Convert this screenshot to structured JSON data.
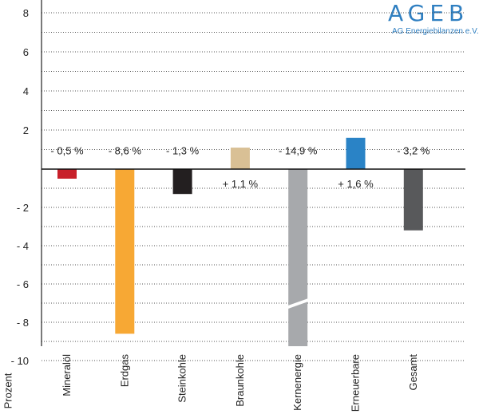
{
  "logo": {
    "title": "AGEB",
    "subtitle": "AG Energiebilanzen e.V."
  },
  "chart_data": {
    "type": "bar",
    "ylabel": "Prozent",
    "categories": [
      "Mineralöl",
      "Erdgas",
      "Steinkohle",
      "Braunkohle",
      "Kernenergie",
      "Erneuerbare",
      "Gesamt"
    ],
    "values": [
      -0.5,
      -8.6,
      -1.3,
      1.1,
      -14.9,
      1.6,
      -3.2
    ],
    "value_labels": [
      "- 0,5 %",
      "- 8,6 %",
      "- 1,3 %",
      "+ 1,1 %",
      "- 14,9 %",
      "+ 1,6 %",
      "- 3,2 %"
    ],
    "colors": [
      "#c8202a",
      "#f7a834",
      "#231f20",
      "#d9c095",
      "#a7a9ac",
      "#2a83c6",
      "#58595b"
    ],
    "y_ticks": [
      8,
      6,
      4,
      2,
      -2,
      -4,
      -6,
      -8,
      -10
    ],
    "y_tick_labels": [
      "8",
      "6",
      "4",
      "2",
      "- 2",
      "- 4",
      "- 6",
      "- 8",
      "- 10"
    ],
    "ylim": [
      -10,
      9
    ],
    "axis_break": {
      "category": "Kernenergie",
      "note": "bar truncated at -10"
    },
    "grid": "dotted horizontal"
  }
}
